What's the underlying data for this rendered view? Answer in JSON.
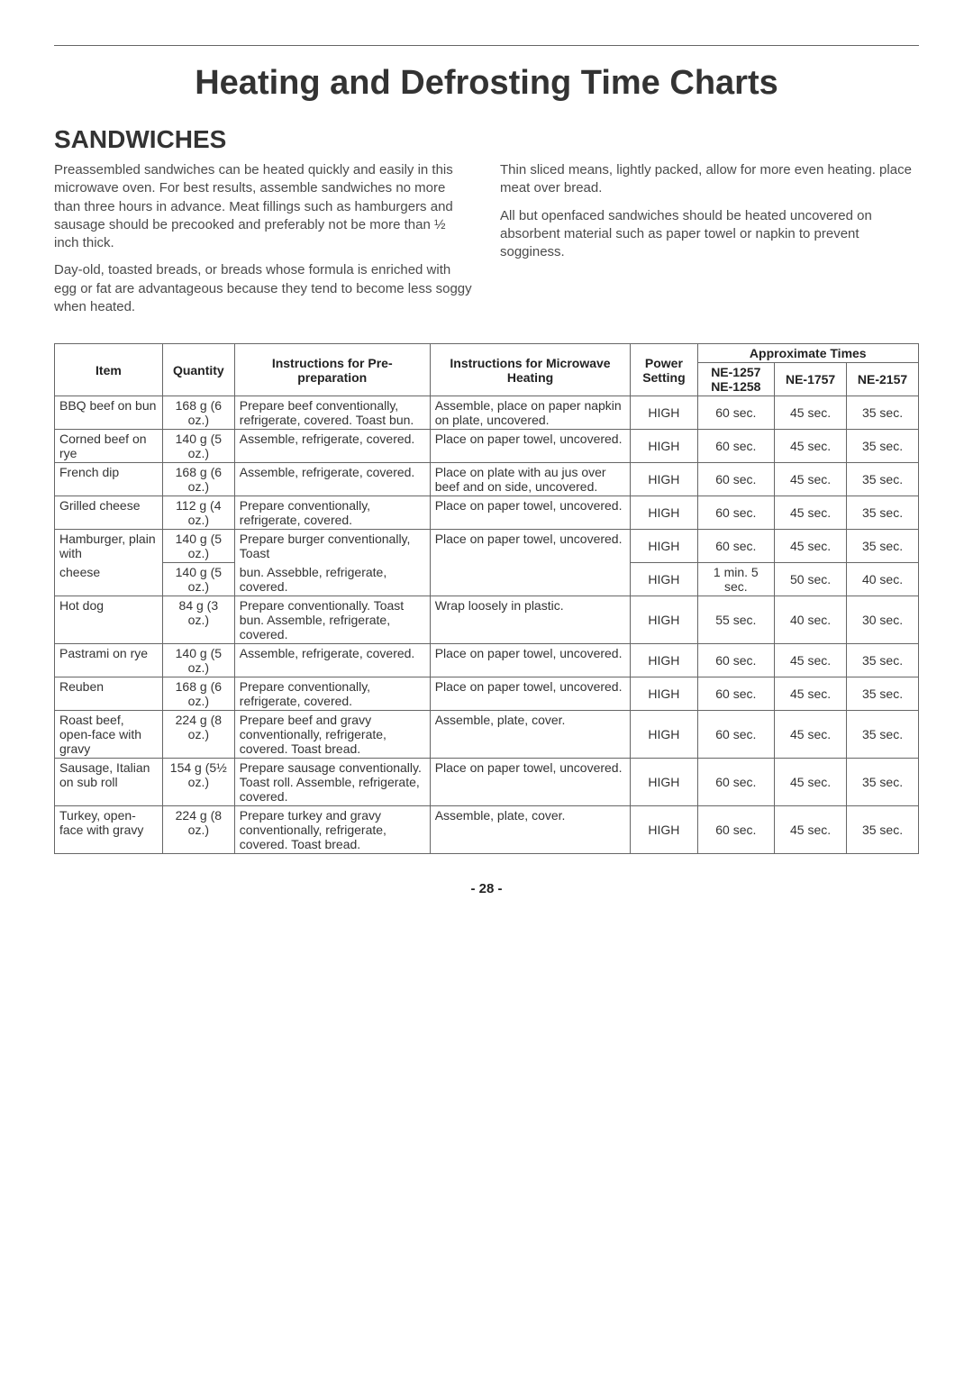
{
  "title": "Heating and Defrosting Time Charts",
  "section": "SANDWICHES",
  "intro": {
    "left": [
      "Preassembled sandwiches can be heated quickly and easily in this microwave oven. For best results, assemble sandwiches no more than three hours in advance. Meat fillings such as hamburgers and sausage should be precooked and preferably not be more than ½ inch thick.",
      "Day-old, toasted breads, or breads whose formula is enriched with egg or fat are advantageous because they tend to become less soggy when heated."
    ],
    "right": [
      "Thin sliced means, lightly packed, allow for more even heating. place meat over bread.",
      "All but openfaced sandwiches should be heated uncovered on absorbent material such as paper towel or napkin to prevent sogginess."
    ]
  },
  "headers": {
    "item": "Item",
    "quantity": "Quantity",
    "pre": "Instructions for Pre-preparation",
    "micro": "Instructions for Microwave Heating",
    "power": "Power Setting",
    "approx": "Approximate Times",
    "m1": "NE-1257 NE-1258",
    "m2": "NE-1757",
    "m3": "NE-2157"
  },
  "rows": [
    {
      "item": "BBQ beef on bun",
      "qty": "168 g (6 oz.)",
      "pre": "Prepare beef conventionally, refrigerate, covered. Toast bun.",
      "micro": "Assemble, place on paper napkin on plate, uncovered.",
      "power": "HIGH",
      "t1": "60 sec.",
      "t2": "45 sec.",
      "t3": "35 sec."
    },
    {
      "item": "Corned beef on rye",
      "qty": "140 g (5 oz.)",
      "pre": "Assemble, refrigerate, covered.",
      "micro": "Place on paper towel, uncovered.",
      "power": "HIGH",
      "t1": "60 sec.",
      "t2": "45 sec.",
      "t3": "35 sec."
    },
    {
      "item": "French dip",
      "qty": "168 g (6 oz.)",
      "pre": "Assemble, refrigerate, covered.",
      "micro": "Place on plate with au jus over beef and on side, uncovered.",
      "power": "HIGH",
      "t1": "60 sec.",
      "t2": "45 sec.",
      "t3": "35 sec."
    },
    {
      "item": "Grilled cheese",
      "qty": "112 g (4 oz.)",
      "pre": "Prepare conventionally, refrigerate, covered.",
      "micro": "Place on paper towel, uncovered.",
      "power": "HIGH",
      "t1": "60 sec.",
      "t2": "45 sec.",
      "t3": "35 sec."
    },
    {
      "item": "Hamburger, plain with",
      "qty": "140 g (5 oz.)",
      "pre": "Prepare burger conventionally, Toast",
      "micro": "Place on paper towel, uncovered.",
      "power": "HIGH",
      "t1": "60 sec.",
      "t2": "45 sec.",
      "t3": "35 sec."
    },
    {
      "item": "cheese",
      "qty": "140 g (5 oz.)",
      "pre": "bun. Assebble, refrigerate, covered.",
      "micro": "",
      "power": "HIGH",
      "t1": "1 min. 5 sec.",
      "t2": "50 sec.",
      "t3": "40 sec."
    },
    {
      "item": "Hot dog",
      "qty": "84 g (3 oz.)",
      "pre": "Prepare conventionally. Toast bun. Assemble, refrigerate, covered.",
      "micro": "Wrap loosely in plastic.",
      "power": "HIGH",
      "t1": "55 sec.",
      "t2": "40 sec.",
      "t3": "30 sec."
    },
    {
      "item": "Pastrami on rye",
      "qty": "140 g (5 oz.)",
      "pre": "Assemble, refrigerate, covered.",
      "micro": "Place on paper towel, uncovered.",
      "power": "HIGH",
      "t1": "60 sec.",
      "t2": "45 sec.",
      "t3": "35 sec."
    },
    {
      "item": "Reuben",
      "qty": "168 g (6 oz.)",
      "pre": "Prepare conventionally, refrigerate, covered.",
      "micro": "Place on paper towel, uncovered.",
      "power": "HIGH",
      "t1": "60 sec.",
      "t2": "45 sec.",
      "t3": "35 sec."
    },
    {
      "item": "Roast beef, open-face with gravy",
      "qty": "224 g (8 oz.)",
      "pre": "Prepare beef and gravy conventionally, refrigerate, covered. Toast bread.",
      "micro": "Assemble, plate, cover.",
      "power": "HIGH",
      "t1": "60 sec.",
      "t2": "45 sec.",
      "t3": "35 sec."
    },
    {
      "item": "Sausage, Italian on sub roll",
      "qty": "154 g (5½ oz.)",
      "pre": "Prepare sausage conventionally. Toast roll. Assemble, refrigerate, covered.",
      "micro": "Place on paper towel, uncovered.",
      "power": "HIGH",
      "t1": "60 sec.",
      "t2": "45 sec.",
      "t3": "35 sec."
    },
    {
      "item": "Turkey, open-face with gravy",
      "qty": "224 g (8 oz.)",
      "pre": "Prepare turkey and gravy conventionally, refrigerate, covered. Toast bread.",
      "micro": "Assemble, plate, cover.",
      "power": "HIGH",
      "t1": "60 sec.",
      "t2": "45 sec.",
      "t3": "35 sec."
    }
  ],
  "pagenum": "- 28 -"
}
